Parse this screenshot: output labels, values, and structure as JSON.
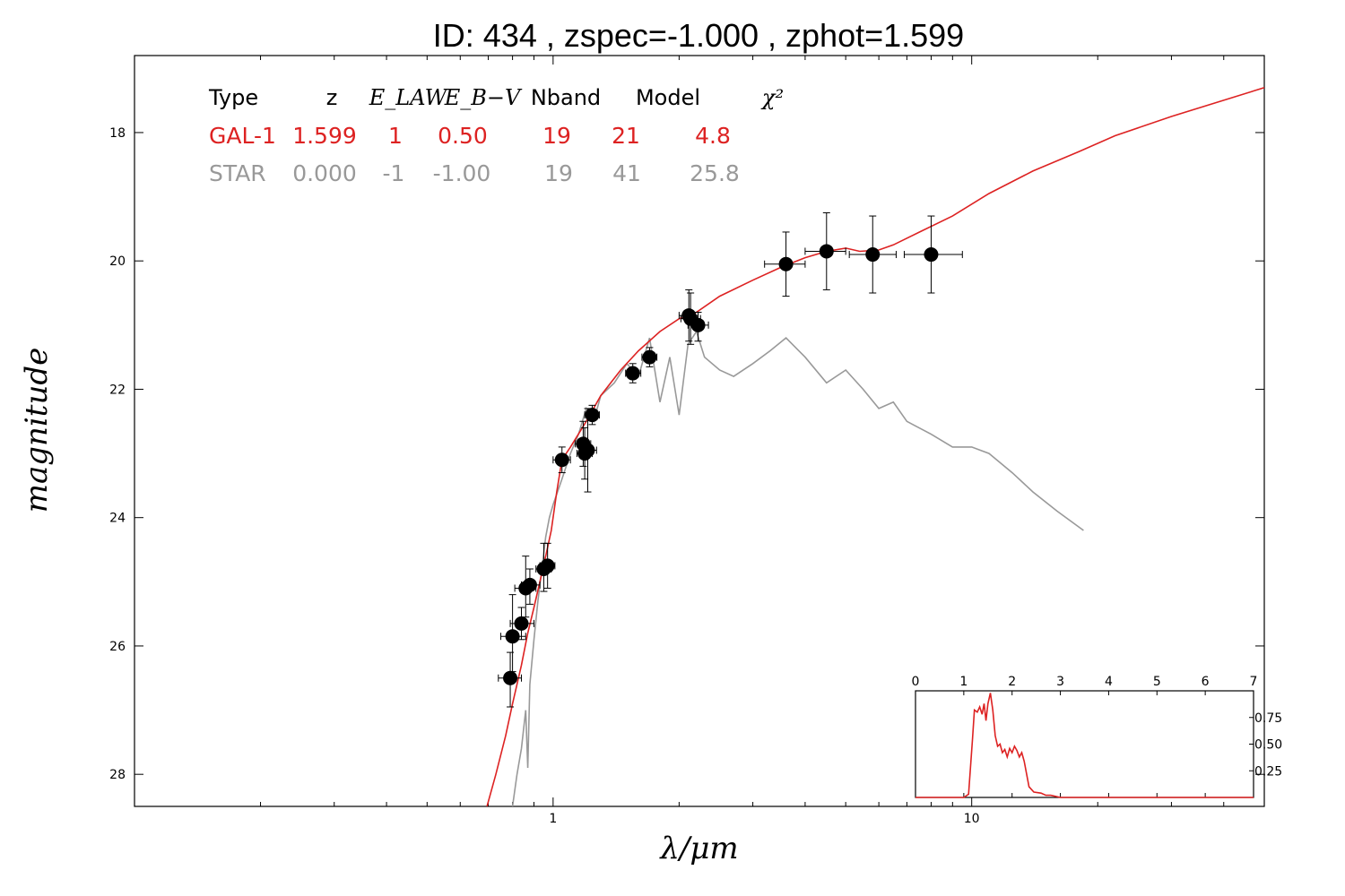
{
  "chart_data": {
    "type": "line",
    "title": "ID:  434   , zspec=-1.000 , zphot=1.599",
    "xlabel": "λ/μm",
    "ylabel": "magnitude",
    "x_scale": "log",
    "xlim": [
      0.1,
      50
    ],
    "ylim": [
      28.5,
      16.8
    ],
    "x_tick_labels": [
      {
        "value": 1,
        "label": "1"
      },
      {
        "value": 10,
        "label": "10"
      }
    ],
    "y_tick_labels": [
      {
        "value": 18,
        "label": "18"
      },
      {
        "value": 20,
        "label": "20"
      },
      {
        "value": 22,
        "label": "22"
      },
      {
        "value": 24,
        "label": "24"
      },
      {
        "value": 26,
        "label": "26"
      },
      {
        "value": 28,
        "label": "28"
      }
    ],
    "fit_table": {
      "headers": [
        "Type",
        "z",
        "E_LAW",
        "E_B−V",
        "Nband",
        "Model",
        "χ²"
      ],
      "rows": [
        {
          "type": "GAL-1",
          "z": "1.599",
          "law": "1",
          "ebv": "0.50",
          "nband": "19",
          "model": "21",
          "chi2": "4.8",
          "color": "#dd2222"
        },
        {
          "type": "STAR",
          "z": "0.000",
          "law": "-1",
          "ebv": "-1.00",
          "nband": "19",
          "model": "41",
          "chi2": "25.8",
          "color": "#999999"
        }
      ]
    },
    "series": [
      {
        "color": "#dd2222",
        "x": [
          0.695,
          0.73,
          0.77,
          0.8,
          0.84,
          0.87,
          0.9,
          0.93,
          0.96,
          0.99,
          1.02,
          1.05,
          1.1,
          1.2,
          1.3,
          1.45,
          1.6,
          1.8,
          2.0,
          2.2,
          2.5,
          3.0,
          3.5,
          4.0,
          4.5,
          5.0,
          5.4,
          6.0,
          6.5,
          7.5,
          9,
          11,
          14,
          18,
          22,
          30,
          50
        ],
        "y": [
          28.5,
          28.0,
          27.4,
          26.9,
          26.3,
          25.8,
          25.4,
          25.0,
          24.6,
          24.2,
          23.6,
          23.1,
          22.9,
          22.5,
          22.1,
          21.7,
          21.4,
          21.1,
          20.9,
          20.8,
          20.55,
          20.3,
          20.1,
          19.95,
          19.85,
          19.8,
          19.85,
          19.83,
          19.75,
          19.55,
          19.3,
          18.95,
          18.6,
          18.3,
          18.05,
          17.75,
          17.3
        ]
      },
      {
        "color": "#999999",
        "x": [
          0.8,
          0.82,
          0.84,
          0.86,
          0.87,
          0.88,
          0.9,
          0.92,
          0.94,
          0.96,
          0.98,
          1.0,
          1.05,
          1.1,
          1.15,
          1.2,
          1.25,
          1.3,
          1.4,
          1.5,
          1.6,
          1.7,
          1.8,
          1.9,
          2.0,
          2.1,
          2.2,
          2.3,
          2.5,
          2.7,
          3.0,
          3.3,
          3.6,
          4.0,
          4.5,
          5.0,
          5.5,
          6.0,
          6.5,
          7.0,
          8.0,
          9.0,
          10.0,
          11.0,
          12.5,
          14.0,
          16.0,
          18.5
        ],
        "y": [
          28.5,
          28.0,
          27.6,
          27.0,
          27.9,
          26.6,
          25.9,
          25.3,
          24.8,
          24.3,
          24.0,
          23.8,
          23.4,
          23.0,
          22.7,
          22.3,
          22.5,
          22.1,
          21.9,
          21.6,
          21.8,
          21.2,
          22.2,
          21.5,
          22.4,
          21.3,
          21.1,
          21.5,
          21.7,
          21.8,
          21.6,
          21.4,
          21.2,
          21.5,
          21.9,
          21.7,
          22.0,
          22.3,
          22.2,
          22.5,
          22.7,
          22.9,
          22.9,
          23.0,
          23.3,
          23.6,
          23.9,
          24.2
        ]
      }
    ],
    "points": [
      {
        "x": 0.79,
        "y": 26.5,
        "xerr": [
          0.74,
          0.84
        ],
        "yerr": [
          26.1,
          26.95
        ]
      },
      {
        "x": 0.8,
        "y": 25.85,
        "xerr": [
          0.75,
          0.86
        ],
        "yerr": [
          25.2,
          26.4
        ]
      },
      {
        "x": 0.84,
        "y": 25.65,
        "xerr": [
          0.79,
          0.9
        ],
        "yerr": [
          25.4,
          25.9
        ]
      },
      {
        "x": 0.86,
        "y": 25.1,
        "xerr": [
          0.81,
          0.91
        ],
        "yerr": [
          24.6,
          25.55
        ]
      },
      {
        "x": 0.88,
        "y": 25.05,
        "xerr": [
          0.84,
          0.93
        ],
        "yerr": [
          24.8,
          25.35
        ]
      },
      {
        "x": 0.95,
        "y": 24.8,
        "xerr": [
          0.91,
          0.99
        ],
        "yerr": [
          24.4,
          25.15
        ]
      },
      {
        "x": 0.97,
        "y": 24.75,
        "xerr": [
          0.93,
          1.01
        ],
        "yerr": [
          24.4,
          25.1
        ]
      },
      {
        "x": 1.05,
        "y": 23.1,
        "xerr": [
          1.0,
          1.1
        ],
        "yerr": [
          22.9,
          23.3
        ]
      },
      {
        "x": 1.18,
        "y": 22.85,
        "xerr": [
          1.13,
          1.23
        ],
        "yerr": [
          22.5,
          23.2
        ]
      },
      {
        "x": 1.19,
        "y": 23.0,
        "xerr": [
          1.14,
          1.24
        ],
        "yerr": [
          22.6,
          23.4
        ]
      },
      {
        "x": 1.21,
        "y": 22.95,
        "xerr": [
          1.16,
          1.27
        ],
        "yerr": [
          22.3,
          23.6
        ]
      },
      {
        "x": 1.24,
        "y": 22.4,
        "xerr": [
          1.19,
          1.29
        ],
        "yerr": [
          22.25,
          22.55
        ]
      },
      {
        "x": 1.55,
        "y": 21.75,
        "xerr": [
          1.49,
          1.62
        ],
        "yerr": [
          21.6,
          21.9
        ]
      },
      {
        "x": 1.7,
        "y": 21.5,
        "xerr": [
          1.63,
          1.77
        ],
        "yerr": [
          21.35,
          21.65
        ]
      },
      {
        "x": 2.11,
        "y": 20.85,
        "xerr": [
          2.0,
          2.22
        ],
        "yerr": [
          20.45,
          21.25
        ]
      },
      {
        "x": 2.13,
        "y": 20.9,
        "xerr": [
          2.02,
          2.25
        ],
        "yerr": [
          20.5,
          21.3
        ]
      },
      {
        "x": 2.22,
        "y": 21.0,
        "xerr": [
          2.1,
          2.35
        ],
        "yerr": [
          20.8,
          21.25
        ]
      },
      {
        "x": 3.6,
        "y": 20.05,
        "xerr": [
          3.2,
          4.0
        ],
        "yerr": [
          19.55,
          20.55
        ]
      },
      {
        "x": 4.5,
        "y": 19.85,
        "xerr": [
          4.0,
          5.0
        ],
        "yerr": [
          19.25,
          20.45
        ]
      },
      {
        "x": 5.8,
        "y": 19.9,
        "xerr": [
          5.1,
          6.6
        ],
        "yerr": [
          19.3,
          20.5
        ]
      },
      {
        "x": 8.0,
        "y": 19.9,
        "xerr": [
          6.9,
          9.5
        ],
        "yerr": [
          19.3,
          20.5
        ]
      }
    ],
    "inset": {
      "type": "line",
      "xlim": [
        0,
        7
      ],
      "ylim": [
        0,
        1.0
      ],
      "x_ticks": [
        "0",
        "1",
        "2",
        "3",
        "4",
        "5",
        "6",
        "7"
      ],
      "y_ticks": [
        "0.25",
        "0.50",
        "0.75"
      ],
      "color": "#dd2222",
      "x": [
        0,
        1.0,
        1.1,
        1.18,
        1.22,
        1.28,
        1.33,
        1.38,
        1.42,
        1.46,
        1.5,
        1.55,
        1.6,
        1.65,
        1.7,
        1.75,
        1.8,
        1.85,
        1.9,
        1.95,
        2.0,
        2.05,
        2.1,
        2.15,
        2.2,
        2.25,
        2.3,
        2.35,
        2.45,
        2.6,
        2.7,
        2.8,
        3.0,
        7.0
      ],
      "y": [
        0.0,
        0.0,
        0.03,
        0.55,
        0.82,
        0.8,
        0.85,
        0.78,
        0.88,
        0.72,
        0.88,
        0.98,
        0.82,
        0.58,
        0.48,
        0.5,
        0.42,
        0.45,
        0.38,
        0.46,
        0.42,
        0.48,
        0.44,
        0.38,
        0.42,
        0.34,
        0.22,
        0.1,
        0.05,
        0.04,
        0.02,
        0.02,
        0.0,
        0.0
      ]
    }
  }
}
